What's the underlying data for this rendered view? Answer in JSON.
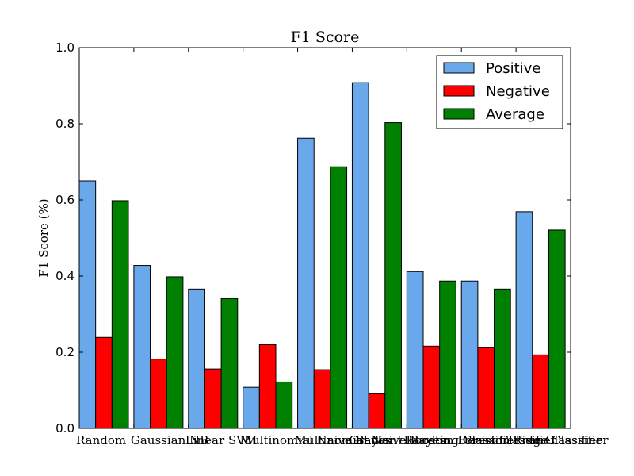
{
  "chart_data": {
    "type": "bar",
    "title": "F1 Score",
    "xlabel": "",
    "ylabel": "F1 Score (%)",
    "ylim": [
      0.0,
      1.0
    ],
    "yticks": [
      "0.0",
      "0.2",
      "0.4",
      "0.6",
      "0.8",
      "1.0"
    ],
    "grid": false,
    "legend_position": "top-right",
    "categories": [
      "Random",
      "Gaussian NB",
      "Linear SVM",
      "Multinomial Naive Bayes",
      "Multinomial Naive Bayes",
      "Gradient Boosting Classifier",
      "Random Forest Classifier",
      "Decision Tree Classifier",
      "Ridge Classifier"
    ],
    "series": [
      {
        "name": "Positive",
        "color": "#6aa8ec",
        "values": [
          0.65,
          0.428,
          0.366,
          0.108,
          0.762,
          0.908,
          0.412,
          0.387,
          0.569
        ]
      },
      {
        "name": "Negative",
        "color": "#ff0000",
        "values": [
          0.239,
          0.182,
          0.156,
          0.22,
          0.154,
          0.091,
          0.216,
          0.212,
          0.193
        ]
      },
      {
        "name": "Average",
        "color": "#008000",
        "values": [
          0.598,
          0.398,
          0.341,
          0.122,
          0.687,
          0.803,
          0.387,
          0.366,
          0.521
        ]
      }
    ]
  }
}
